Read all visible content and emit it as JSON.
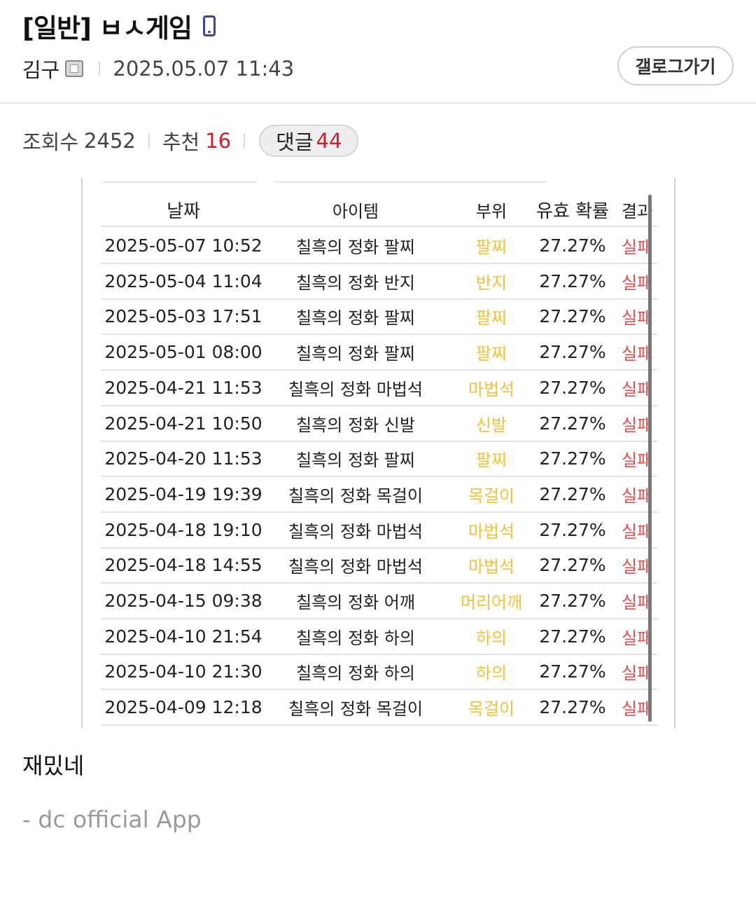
{
  "post": {
    "title": "[일반] ㅂㅅ게임",
    "author": "김구",
    "date": "2025.05.07 11:43",
    "gallery_button": "갤로그가기",
    "views_label": "조회수",
    "views": "2452",
    "recommend_label": "추천",
    "recommend": "16",
    "comments_label": "댓글",
    "comments": "44",
    "body": "재밌네",
    "footer": "- dc official App"
  },
  "colors": {
    "accent_red": "#d31c2a",
    "part_yellow": "#f2c23c",
    "fail_red": "#e74c4c"
  },
  "table": {
    "headers": {
      "date": "날짜",
      "item": "아이템",
      "part": "부위",
      "prob": "유효 확률",
      "result": "결과"
    },
    "rows": [
      {
        "date": "2025-05-07 10:52",
        "item": "칠흑의 정화 팔찌",
        "part": "팔찌",
        "prob": "27.27%",
        "result": "실패"
      },
      {
        "date": "2025-05-04 11:04",
        "item": "칠흑의 정화 반지",
        "part": "반지",
        "prob": "27.27%",
        "result": "실패"
      },
      {
        "date": "2025-05-03 17:51",
        "item": "칠흑의 정화 팔찌",
        "part": "팔찌",
        "prob": "27.27%",
        "result": "실패"
      },
      {
        "date": "2025-05-01 08:00",
        "item": "칠흑의 정화 팔찌",
        "part": "팔찌",
        "prob": "27.27%",
        "result": "실패"
      },
      {
        "date": "2025-04-21 11:53",
        "item": "칠흑의 정화 마법석",
        "part": "마법석",
        "prob": "27.27%",
        "result": "실패"
      },
      {
        "date": "2025-04-21 10:50",
        "item": "칠흑의 정화 신발",
        "part": "신발",
        "prob": "27.27%",
        "result": "실패"
      },
      {
        "date": "2025-04-20 11:53",
        "item": "칠흑의 정화 팔찌",
        "part": "팔찌",
        "prob": "27.27%",
        "result": "실패"
      },
      {
        "date": "2025-04-19 19:39",
        "item": "칠흑의 정화 목걸이",
        "part": "목걸이",
        "prob": "27.27%",
        "result": "실패"
      },
      {
        "date": "2025-04-18 19:10",
        "item": "칠흑의 정화 마법석",
        "part": "마법석",
        "prob": "27.27%",
        "result": "실패"
      },
      {
        "date": "2025-04-18 14:55",
        "item": "칠흑의 정화 마법석",
        "part": "마법석",
        "prob": "27.27%",
        "result": "실패"
      },
      {
        "date": "2025-04-15 09:38",
        "item": "칠흑의 정화 어깨",
        "part": "머리어깨",
        "prob": "27.27%",
        "result": "실패"
      },
      {
        "date": "2025-04-10 21:54",
        "item": "칠흑의 정화 하의",
        "part": "하의",
        "prob": "27.27%",
        "result": "실패"
      },
      {
        "date": "2025-04-10 21:30",
        "item": "칠흑의 정화 하의",
        "part": "하의",
        "prob": "27.27%",
        "result": "실패"
      },
      {
        "date": "2025-04-09 12:18",
        "item": "칠흑의 정화 목걸이",
        "part": "목걸이",
        "prob": "27.27%",
        "result": "실패"
      }
    ]
  }
}
